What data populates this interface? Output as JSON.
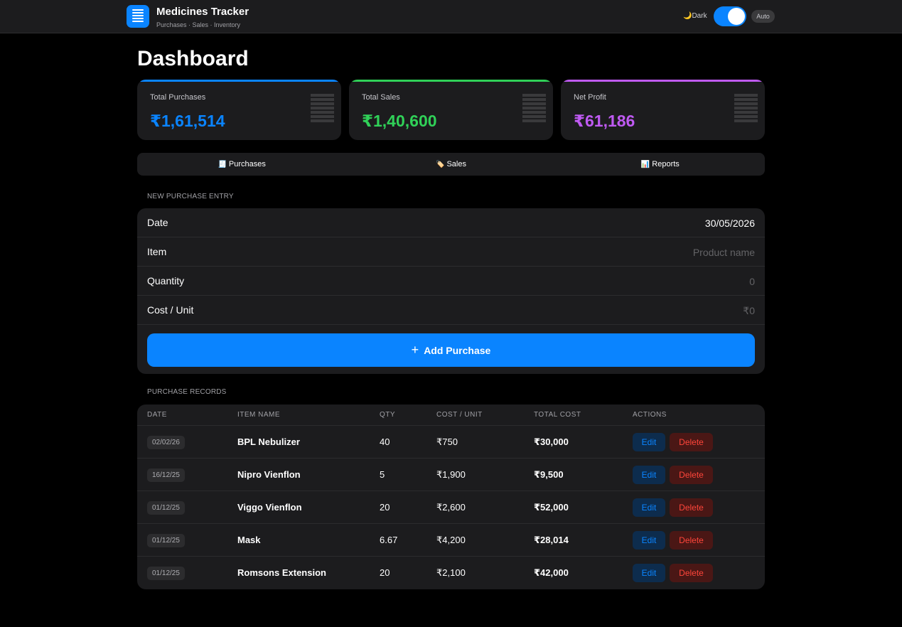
{
  "header": {
    "title": "Medicines Tracker",
    "subtitle": "Purchases · Sales · Inventory",
    "theme_icon": "moon-icon",
    "theme_label": "Dark",
    "theme_toggle_on": true,
    "auto_label": "Auto",
    "app_icon": "list-icon"
  },
  "page_title": "Dashboard",
  "stats": [
    {
      "label": "Total Purchases",
      "value": "₹1,61,514",
      "color": "#0a84ff"
    },
    {
      "label": "Total Sales",
      "value": "₹1,40,600",
      "color": "#30d158"
    },
    {
      "label": "Net Profit",
      "value": "₹61,186",
      "color": "#bf5af2"
    }
  ],
  "tabs": [
    {
      "icon": "🧾",
      "label": "Purchases"
    },
    {
      "icon": "🏷️",
      "label": "Sales"
    },
    {
      "icon": "📊",
      "label": "Reports"
    }
  ],
  "form": {
    "section_title": "NEW PURCHASE ENTRY",
    "date_label": "Date",
    "date_value": "30/05/2026",
    "item_label": "Item",
    "item_placeholder": "Product name",
    "quantity_label": "Quantity",
    "quantity_placeholder": "0",
    "cost_label": "Cost / Unit",
    "cost_placeholder": "₹0",
    "add_button": "Add Purchase"
  },
  "records": {
    "section_title": "PURCHASE RECORDS",
    "columns": [
      "DATE",
      "ITEM NAME",
      "QTY",
      "COST / UNIT",
      "TOTAL COST",
      "ACTIONS"
    ],
    "edit_label": "Edit",
    "delete_label": "Delete",
    "rows": [
      {
        "date": "02/02/26",
        "item": "BPL Nebulizer",
        "qty": "40",
        "cost": "₹750",
        "total": "₹30,000"
      },
      {
        "date": "16/12/25",
        "item": "Nipro Vienflon",
        "qty": "5",
        "cost": "₹1,900",
        "total": "₹9,500"
      },
      {
        "date": "01/12/25",
        "item": "Viggo Vienflon",
        "qty": "20",
        "cost": "₹2,600",
        "total": "₹52,000"
      },
      {
        "date": "01/12/25",
        "item": "Mask",
        "qty": "6.67",
        "cost": "₹4,200",
        "total": "₹28,014"
      },
      {
        "date": "01/12/25",
        "item": "Romsons Extension",
        "qty": "20",
        "cost": "₹2,100",
        "total": "₹42,000"
      }
    ]
  }
}
